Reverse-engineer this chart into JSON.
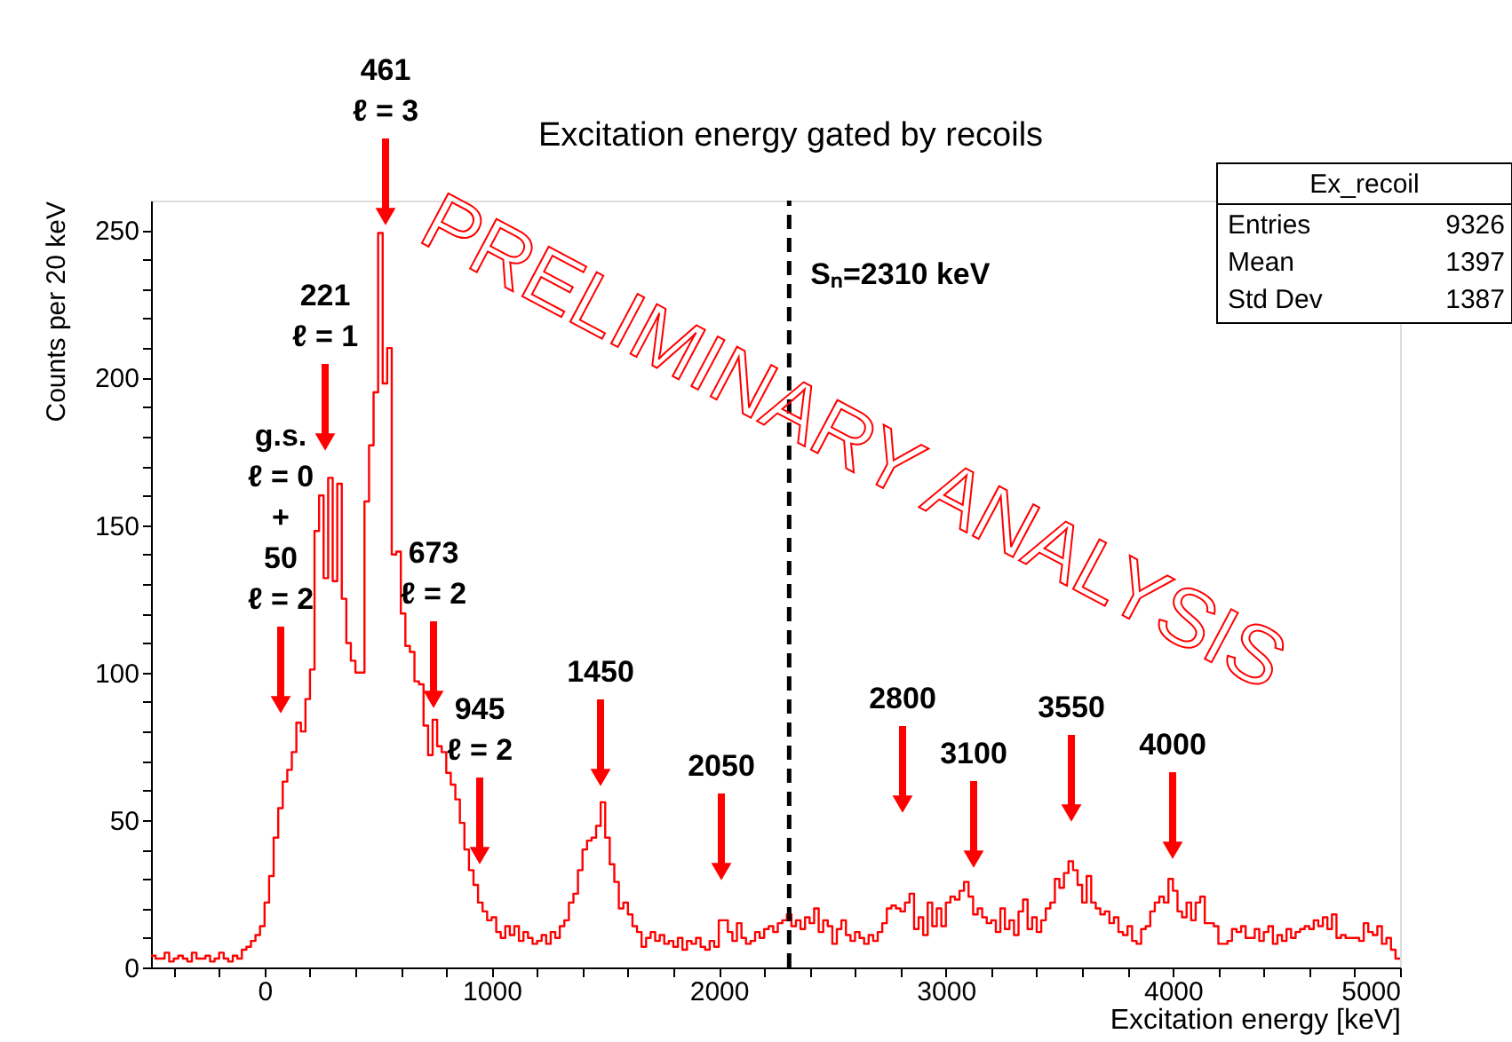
{
  "chart_data": {
    "type": "histogram",
    "title": "Excitation energy gated by recoils",
    "xlabel": "Excitation energy [keV]",
    "ylabel": "Counts per 20 keV",
    "color": "#ff0000",
    "bins": [
      -500,
      -480,
      -460,
      -440,
      -420,
      -400,
      -380,
      -360,
      -340,
      -320,
      -300,
      -280,
      -260,
      -240,
      -220,
      -200,
      -180,
      -160,
      -140,
      -120,
      -100,
      -80,
      -60,
      -40,
      -20,
      0,
      20,
      40,
      60,
      80,
      100,
      120,
      140,
      160,
      180,
      200,
      220,
      240,
      260,
      280,
      300,
      320,
      340,
      360,
      380,
      400,
      420,
      440,
      460,
      480,
      500,
      520,
      540,
      560,
      580,
      600,
      620,
      640,
      660,
      680,
      700,
      720,
      740,
      760,
      780,
      800,
      820,
      840,
      860,
      880,
      900,
      920,
      940,
      960,
      980,
      1000,
      1020,
      1040,
      1060,
      1080,
      1100,
      1120,
      1140,
      1160,
      1180,
      1200,
      1220,
      1240,
      1260,
      1280,
      1300,
      1320,
      1340,
      1360,
      1380,
      1400,
      1420,
      1440,
      1460,
      1480,
      1500,
      1520,
      1540,
      1560,
      1580,
      1600,
      1620,
      1640,
      1660,
      1680,
      1700,
      1720,
      1740,
      1760,
      1780,
      1800,
      1820,
      1840,
      1860,
      1880,
      1900,
      1920,
      1940,
      1960,
      1980,
      2000,
      2020,
      2040,
      2060,
      2080,
      2100,
      2120,
      2140,
      2160,
      2180,
      2200,
      2220,
      2240,
      2260,
      2280,
      2300,
      2320,
      2340,
      2360,
      2380,
      2400,
      2420,
      2440,
      2460,
      2480,
      2500,
      2520,
      2540,
      2560,
      2580,
      2600,
      2620,
      2640,
      2660,
      2680,
      2700,
      2720,
      2740,
      2760,
      2780,
      2800,
      2820,
      2840,
      2860,
      2880,
      2900,
      2920,
      2940,
      2960,
      2980,
      3000,
      3020,
      3040,
      3060,
      3080,
      3100,
      3120,
      3140,
      3160,
      3180,
      3200,
      3220,
      3240,
      3260,
      3280,
      3300,
      3320,
      3340,
      3360,
      3380,
      3400,
      3420,
      3440,
      3460,
      3480,
      3500,
      3520,
      3540,
      3560,
      3580,
      3600,
      3620,
      3640,
      3660,
      3680,
      3700,
      3720,
      3740,
      3760,
      3780,
      3800,
      3820,
      3840,
      3860,
      3880,
      3900,
      3920,
      3940,
      3960,
      3980,
      4000,
      4020,
      4040,
      4060,
      4080,
      4100,
      4120,
      4140,
      4160,
      4180,
      4200,
      4220,
      4240,
      4260,
      4280,
      4300,
      4320,
      4340,
      4360,
      4380,
      4400,
      4420,
      4440,
      4460,
      4480,
      4500,
      4520,
      4540,
      4560,
      4580,
      4600,
      4620,
      4640,
      4660,
      4680,
      4700,
      4720,
      4740,
      4760,
      4780,
      4800,
      4820,
      4840,
      4860,
      4880,
      4900,
      4920,
      4940,
      4960,
      4980,
      5000
    ],
    "values": [
      4,
      3,
      3,
      5,
      2,
      3,
      4,
      3,
      2,
      5,
      3,
      3,
      4,
      2,
      3,
      5,
      3,
      2,
      4,
      3,
      6,
      7,
      9,
      11,
      14,
      22,
      31,
      44,
      54,
      63,
      67,
      73,
      83,
      80,
      91,
      101,
      148,
      160,
      132,
      166,
      131,
      164,
      125,
      110,
      104,
      100,
      100,
      158,
      177,
      195,
      249,
      198,
      210,
      140,
      141,
      120,
      109,
      107,
      97,
      96,
      82,
      72,
      84,
      75,
      73,
      66,
      62,
      57,
      49,
      40,
      33,
      28,
      22,
      19,
      16,
      17,
      12,
      10,
      14,
      11,
      14,
      9,
      12,
      10,
      8,
      9,
      11,
      8,
      12,
      10,
      14,
      16,
      22,
      25,
      33,
      40,
      43,
      44,
      48,
      56,
      44,
      35,
      29,
      20,
      22,
      18,
      14,
      12,
      7,
      10,
      12,
      9,
      11,
      8,
      9,
      7,
      10,
      6,
      9,
      8,
      10,
      7,
      6,
      9,
      7,
      16,
      16,
      12,
      9,
      15,
      10,
      8,
      9,
      12,
      10,
      13,
      14,
      12,
      15,
      16,
      18,
      14,
      16,
      13,
      17,
      15,
      20,
      12,
      16,
      14,
      8,
      13,
      16,
      11,
      9,
      12,
      10,
      8,
      11,
      9,
      12,
      15,
      20,
      21,
      20,
      19,
      22,
      25,
      13,
      17,
      11,
      22,
      14,
      20,
      14,
      22,
      24,
      23,
      26,
      29,
      24,
      18,
      20,
      17,
      15,
      16,
      12,
      20,
      13,
      16,
      11,
      19,
      23,
      13,
      17,
      12,
      16,
      20,
      22,
      30,
      27,
      32,
      36,
      33,
      28,
      22,
      31,
      22,
      20,
      18,
      19,
      15,
      17,
      12,
      11,
      14,
      9,
      8,
      13,
      14,
      19,
      22,
      24,
      22,
      30,
      26,
      19,
      17,
      22,
      16,
      22,
      24,
      15,
      15,
      14,
      8,
      8,
      9,
      13,
      12,
      14,
      10,
      10,
      13,
      9,
      12,
      14,
      8,
      11,
      9,
      13,
      10,
      12,
      13,
      14,
      13,
      16,
      14,
      17,
      13,
      18,
      10,
      11,
      10,
      10,
      10,
      9,
      15,
      12,
      11,
      14,
      8,
      10,
      6,
      3
    ],
    "xlim": [
      -500,
      5000
    ],
    "xticks": [
      {
        "value": -400,
        "label": null
      },
      {
        "value": -200,
        "label": null
      },
      0,
      {
        "value": 200,
        "label": null
      },
      {
        "value": 400,
        "label": null
      },
      {
        "value": 600,
        "label": null
      },
      {
        "value": 800,
        "label": null
      },
      1000,
      {
        "value": 1200,
        "label": null
      },
      {
        "value": 1400,
        "label": null
      },
      {
        "value": 1600,
        "label": null
      },
      {
        "value": 1800,
        "label": null
      },
      2000,
      {
        "value": 2200,
        "label": null
      },
      {
        "value": 2400,
        "label": null
      },
      {
        "value": 2600,
        "label": null
      },
      {
        "value": 2800,
        "label": null
      },
      3000,
      {
        "value": 3200,
        "label": null
      },
      {
        "value": 3400,
        "label": null
      },
      {
        "value": 3600,
        "label": null
      },
      {
        "value": 3800,
        "label": null
      },
      4000,
      {
        "value": 4200,
        "label": null
      },
      {
        "value": 4400,
        "label": null
      },
      {
        "value": 4600,
        "label": null
      },
      {
        "value": 4800,
        "label": null
      },
      5000
    ],
    "ylim": [
      0,
      260
    ],
    "yticks": [
      0,
      {
        "value": 10,
        "label": null
      },
      {
        "value": 20,
        "label": null
      },
      {
        "value": 30,
        "label": null
      },
      {
        "value": 40,
        "label": null
      },
      50,
      {
        "value": 60,
        "label": null
      },
      {
        "value": 70,
        "label": null
      },
      {
        "value": 80,
        "label": null
      },
      {
        "value": 90,
        "label": null
      },
      100,
      {
        "value": 110,
        "label": null
      },
      {
        "value": 120,
        "label": null
      },
      {
        "value": 130,
        "label": null
      },
      {
        "value": 140,
        "label": null
      },
      150,
      {
        "value": 160,
        "label": null
      },
      {
        "value": 170,
        "label": null
      },
      {
        "value": 180,
        "label": null
      },
      {
        "value": 190,
        "label": null
      },
      200,
      {
        "value": 210,
        "label": null
      },
      {
        "value": 220,
        "label": null
      },
      {
        "value": 230,
        "label": null
      },
      {
        "value": 240,
        "label": null
      },
      250
    ],
    "ref_lines": [
      {
        "axis": "x",
        "value": 2310,
        "label": "Sₙ=2310 keV",
        "color": "#000000",
        "line_style": "dashed"
      }
    ],
    "annotations": [
      "g.s.\nℓ = 0\n+\n50\nℓ = 2",
      "221\nℓ = 1",
      "461\nℓ = 3",
      "673\nℓ = 2",
      "945\nℓ = 2",
      "1450",
      "2050",
      "2800",
      "3100",
      "3550",
      "4000",
      "Ex_recoil",
      "Entries 9326",
      "Mean 1397",
      "Std Dev 1387",
      "PRELIMINARY ANALYSIS"
    ]
  }
}
